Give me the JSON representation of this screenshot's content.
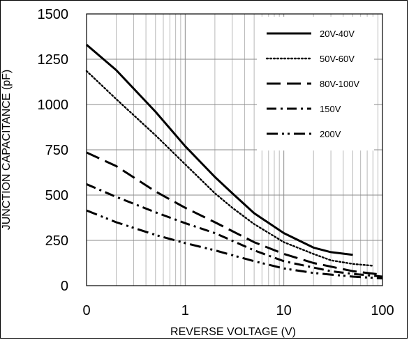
{
  "chart_data": {
    "type": "line",
    "title": "",
    "xlabel": "REVERSE VOLTAGE (V)",
    "ylabel": "JUNCTION CAPACITANCE (pF)",
    "x_scale": "log",
    "x_ticks": [
      {
        "value": 0.1,
        "label": "0"
      },
      {
        "value": 1,
        "label": "1"
      },
      {
        "value": 10,
        "label": "10"
      },
      {
        "value": 100,
        "label": "100"
      }
    ],
    "y_ticks": [
      {
        "value": 0,
        "label": "0"
      },
      {
        "value": 250,
        "label": "250"
      },
      {
        "value": 500,
        "label": "500"
      },
      {
        "value": 750,
        "label": "750"
      },
      {
        "value": 1000,
        "label": "1000"
      },
      {
        "value": 1250,
        "label": "1250"
      },
      {
        "value": 1500,
        "label": "1500"
      }
    ],
    "xlim": [
      0.1,
      100
    ],
    "ylim": [
      0,
      1500
    ],
    "grid": true,
    "legend_position": "top-right",
    "series": [
      {
        "name": "20V-40V",
        "dash": "solid",
        "x": [
          0.1,
          0.2,
          0.5,
          1,
          2,
          3,
          5,
          10,
          20,
          30,
          50
        ],
        "y": [
          1330,
          1190,
          960,
          770,
          600,
          510,
          400,
          290,
          210,
          185,
          170
        ]
      },
      {
        "name": "50V-60V",
        "dash": "dot",
        "x": [
          0.1,
          0.2,
          0.5,
          1,
          2,
          3,
          5,
          10,
          20,
          30,
          50,
          80
        ],
        "y": [
          1185,
          1030,
          830,
          670,
          510,
          430,
          340,
          240,
          175,
          140,
          120,
          110
        ]
      },
      {
        "name": "80V-100V",
        "dash": "long-dash",
        "x": [
          0.1,
          0.2,
          0.5,
          1,
          2,
          5,
          10,
          20,
          50,
          100
        ],
        "y": [
          735,
          660,
          520,
          430,
          350,
          240,
          175,
          125,
          80,
          60
        ]
      },
      {
        "name": "150V",
        "dash": "dash-dot",
        "x": [
          0.1,
          0.2,
          0.5,
          1,
          2,
          5,
          10,
          20,
          30,
          50,
          100
        ],
        "y": [
          560,
          490,
          405,
          345,
          290,
          195,
          135,
          100,
          80,
          65,
          50
        ]
      },
      {
        "name": "200V",
        "dash": "dash-dot-dot",
        "x": [
          0.1,
          0.2,
          0.5,
          1,
          2,
          5,
          10,
          20,
          50,
          100
        ],
        "y": [
          415,
          350,
          280,
          235,
          195,
          135,
          95,
          70,
          50,
          40
        ]
      }
    ]
  }
}
